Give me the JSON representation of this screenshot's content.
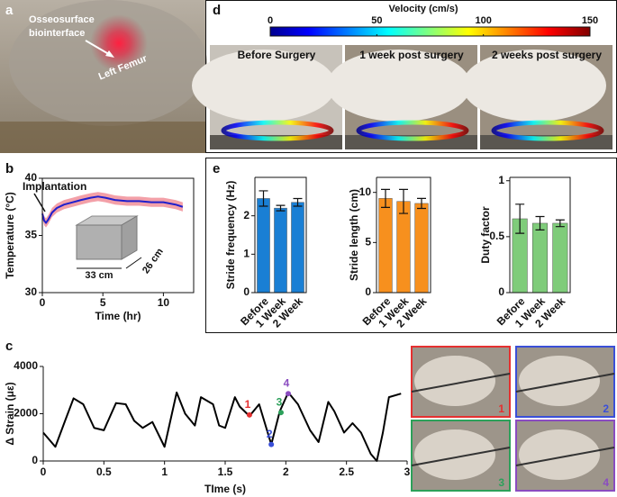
{
  "panels": {
    "a": {
      "label": "a",
      "texts": [
        "Osseosurface",
        "biointerface",
        "Left Femur"
      ]
    },
    "d": {
      "label": "d",
      "colorbar": {
        "title": "Velocity (cm/s)",
        "lim": [
          0,
          150
        ],
        "ticks": [
          0,
          50,
          100,
          150
        ]
      },
      "photos": [
        "Before Surgery",
        "1 week post surgery",
        "2 weeks post surgery"
      ]
    },
    "e": {
      "label": "e"
    },
    "frames": {
      "labels": [
        "1",
        "2",
        "3",
        "4"
      ],
      "colors": [
        "#e53030",
        "#3a4fd8",
        "#2ca05a",
        "#8a4cc0"
      ]
    }
  },
  "chart_data": [
    {
      "type": "line",
      "label": "b",
      "ylabel": "Temperature (°C)",
      "xlabel": "Time (hr)",
      "annotations": [
        "Implantation",
        "33 cm",
        "26 cm"
      ],
      "x": [
        0,
        0.15,
        0.3,
        0.5,
        0.8,
        1.2,
        1.8,
        2.5,
        3.2,
        4,
        4.6,
        5.2,
        6,
        7,
        8,
        9,
        10,
        11,
        11.6
      ],
      "values": [
        36.9,
        36.3,
        36.1,
        36.4,
        37,
        37.4,
        37.7,
        37.9,
        38.1,
        38.3,
        38.4,
        38.3,
        38.1,
        38,
        38,
        37.9,
        37.9,
        37.7,
        37.5
      ],
      "errors": [
        0.4,
        0.4,
        0.4,
        0.4,
        0.4,
        0.4,
        0.4,
        0.4,
        0.4,
        0.4,
        0.4,
        0.4,
        0.4,
        0.4,
        0.4,
        0.4,
        0.4,
        0.4,
        0.4
      ],
      "color": "#1f1fcc",
      "band_color": "#f3a0a8",
      "xlim": [
        0,
        12.5
      ],
      "ylim": [
        30,
        40
      ],
      "xticks": [
        0,
        5,
        10
      ],
      "yticks": [
        30,
        35,
        40
      ]
    },
    {
      "type": "line",
      "label": "c",
      "ylabel": "Δ Strain (με)",
      "xlabel": "TIme (s)",
      "x": [
        0,
        0.1,
        0.18,
        0.25,
        0.33,
        0.42,
        0.5,
        0.6,
        0.68,
        0.75,
        0.82,
        0.9,
        1.0,
        1.1,
        1.17,
        1.25,
        1.3,
        1.4,
        1.45,
        1.5,
        1.58,
        1.62,
        1.7,
        1.78,
        1.88,
        1.95,
        2.02,
        2.1,
        2.2,
        2.27,
        2.35,
        2.4,
        2.48,
        2.55,
        2.62,
        2.7,
        2.75,
        2.8,
        2.85,
        2.95
      ],
      "values": [
        1200,
        600,
        1700,
        2650,
        2400,
        1400,
        1300,
        2450,
        2400,
        1700,
        1400,
        1650,
        600,
        2900,
        2000,
        1500,
        2700,
        2400,
        1500,
        1400,
        2700,
        2300,
        1900,
        2400,
        700,
        2100,
        2900,
        2400,
        1300,
        800,
        2500,
        2100,
        1200,
        1600,
        1200,
        300,
        0,
        1200,
        2700,
        2850
      ],
      "color": "#000000",
      "xlim": [
        0,
        3
      ],
      "ylim": [
        0,
        4000
      ],
      "xticks": [
        0,
        0.5,
        1,
        1.5,
        2,
        2.5,
        3
      ],
      "yticks": [
        0,
        2000,
        4000
      ],
      "points": {
        "x": [
          1.7,
          1.88,
          1.96,
          2.02
        ],
        "values": [
          1950,
          700,
          2050,
          2850
        ],
        "labels": [
          "1",
          "2",
          "3",
          "4"
        ],
        "colors": [
          "#e53030",
          "#3a4fd8",
          "#2ca05a",
          "#8a4cc0"
        ]
      }
    },
    {
      "type": "bar",
      "ylabel": "Stride frequency (Hz)",
      "categories": [
        "Before",
        "1 Week",
        "2 Week"
      ],
      "values": [
        2.45,
        2.2,
        2.35
      ],
      "errors": [
        0.2,
        0.07,
        0.1
      ],
      "color": "#1a7fd4",
      "ylim": [
        0,
        3
      ],
      "yticks": [
        0,
        1,
        2
      ]
    },
    {
      "type": "bar",
      "ylabel": "Stride length (cm)",
      "categories": [
        "Before",
        "1 Week",
        "2 Week"
      ],
      "values": [
        9.4,
        9.1,
        8.9
      ],
      "errors": [
        0.9,
        1.2,
        0.5
      ],
      "color": "#f7901e",
      "ylim": [
        0,
        11.5
      ],
      "yticks": [
        0,
        5,
        10
      ]
    },
    {
      "type": "bar",
      "ylabel": "Duty factor",
      "categories": [
        "Before",
        "1 Week",
        "2 Week"
      ],
      "values": [
        0.66,
        0.62,
        0.62
      ],
      "errors": [
        0.13,
        0.06,
        0.03
      ],
      "color": "#7fcc7a",
      "ylim": [
        0,
        1.03
      ],
      "yticks": [
        0,
        0.5,
        1
      ]
    }
  ]
}
